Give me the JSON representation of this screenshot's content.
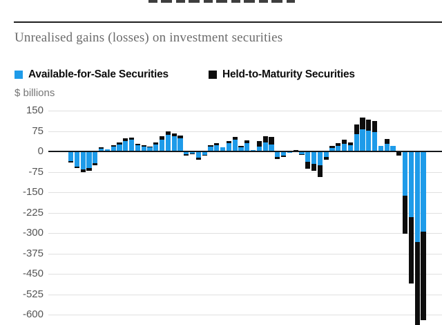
{
  "subtitle": "Unrealised gains (losses) on investment securities",
  "units_label": "$ billions",
  "legend": {
    "items": [
      {
        "label": "Available-for-Sale Securities",
        "color": "#1e9be9"
      },
      {
        "label": "Held-to-Maturity Securities",
        "color": "#0d0d0d"
      }
    ]
  },
  "colors": {
    "afs_blue": "#1e9be9",
    "htm_black": "#0d0d0d",
    "gridline": "#e0e0e0",
    "zero_line": "#14171a",
    "subtitle_gray": "#6b6b6b",
    "tick_gray": "#545454"
  },
  "chart_data": {
    "type": "bar",
    "stacked": true,
    "title": "Unrealised gains (losses) on investment securities",
    "ylabel": "$ billions",
    "yticks": [
      150,
      75,
      0,
      -75,
      -150,
      -225,
      -300,
      -375,
      -450,
      -525,
      -600
    ],
    "ylim_visible": [
      -638,
      150
    ],
    "grid": true,
    "legend_position": "top",
    "x_axis_labels": "cropped out of visible frame (quarterly bars, left group to right group)",
    "series": [
      {
        "name": "Available-for-Sale Securities",
        "color": "#1e9be9",
        "values": [
          -35,
          -55,
          -65,
          -60,
          -42,
          10,
          8,
          17,
          26,
          38,
          42,
          24,
          18,
          15,
          26,
          44,
          61,
          55,
          48,
          -11,
          -8,
          -22,
          -12,
          19,
          23,
          16,
          30,
          42,
          14,
          31,
          6,
          18,
          32,
          26,
          -20,
          -15,
          -4,
          2,
          -11,
          -39,
          -45,
          -50,
          -20,
          12,
          20,
          29,
          24,
          64,
          81,
          77,
          72,
          20,
          29,
          20,
          -2,
          -162,
          -241,
          -333,
          -295
        ]
      },
      {
        "name": "Held-to-Maturity Securities",
        "color": "#0d0d0d",
        "values": [
          -5,
          -7,
          -12,
          -10,
          -8,
          5,
          0,
          5,
          6,
          10,
          10,
          4,
          4,
          3,
          6,
          11,
          14,
          12,
          10,
          -4,
          -3,
          -8,
          -4,
          5,
          7,
          0,
          8,
          11,
          7,
          9,
          0,
          20,
          25,
          27,
          -7,
          -5,
          0,
          4,
          -3,
          -24,
          -27,
          -44,
          -10,
          8,
          11,
          14,
          8,
          35,
          43,
          41,
          40,
          0,
          17,
          0,
          -13,
          -140,
          -245,
          -357,
          -325
        ]
      }
    ]
  }
}
